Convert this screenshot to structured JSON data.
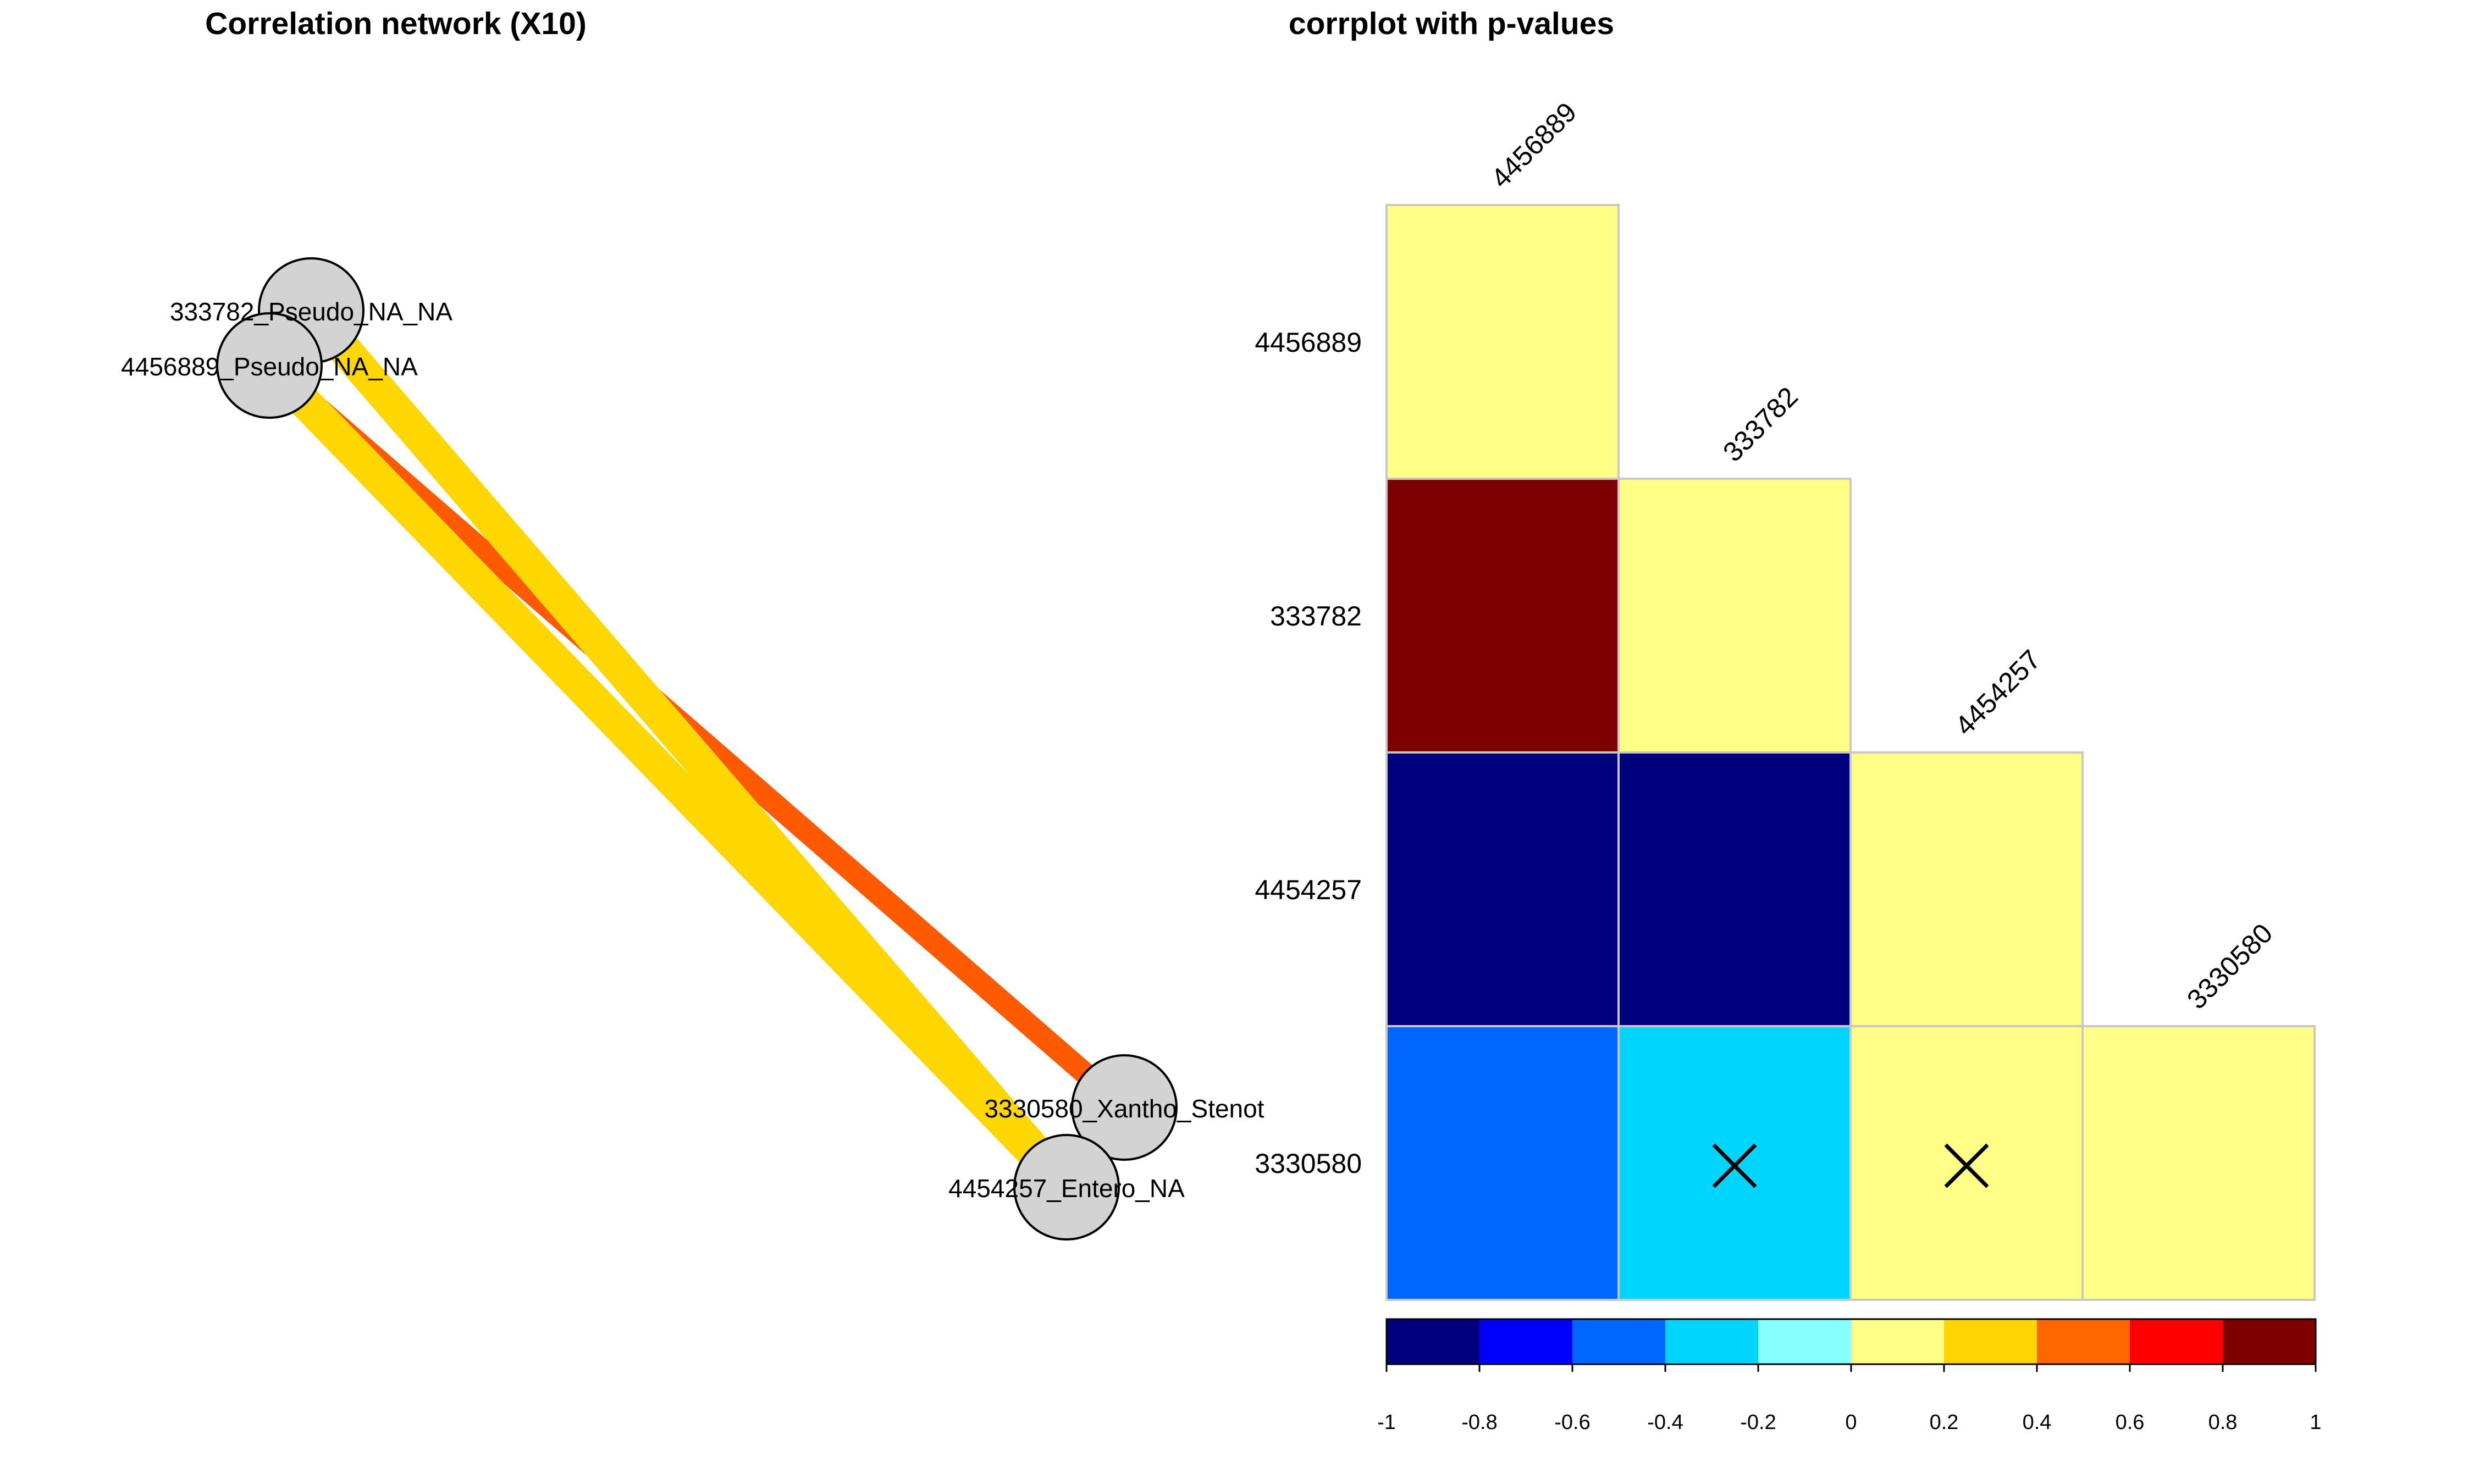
{
  "chart_data": [
    {
      "type": "network",
      "title": "Correlation network (X10)",
      "nodes": [
        {
          "id": "333782",
          "label": "333782_Pseudo_NA_NA"
        },
        {
          "id": "4456889",
          "label": "4456889_Pseudo_NA_NA"
        },
        {
          "id": "3330580",
          "label": "3330580_Xantho_Stenot"
        },
        {
          "id": "4454257",
          "label": "4454257_Entero_NA"
        }
      ],
      "edges": [
        {
          "source": "4456889",
          "target": "3330580",
          "color": "#FF5A00"
        },
        {
          "source": "4456889",
          "target": "4454257",
          "color": "#FFD700"
        },
        {
          "source": "333782",
          "target": "4454257",
          "color": "#FFD700"
        }
      ]
    },
    {
      "type": "heatmap",
      "title": "corrplot with p-values",
      "labels": [
        "4456889",
        "333782",
        "4454257",
        "3330580"
      ],
      "cells": [
        {
          "row": 0,
          "col": 0,
          "value": 0.1
        },
        {
          "row": 1,
          "col": 0,
          "value": 0.92
        },
        {
          "row": 1,
          "col": 1,
          "value": 0.1
        },
        {
          "row": 2,
          "col": 0,
          "value": -0.92
        },
        {
          "row": 2,
          "col": 1,
          "value": -0.92
        },
        {
          "row": 2,
          "col": 2,
          "value": 0.1
        },
        {
          "row": 3,
          "col": 0,
          "value": -0.5
        },
        {
          "row": 3,
          "col": 1,
          "value": -0.3,
          "insignificant": true
        },
        {
          "row": 3,
          "col": 2,
          "value": 0.1,
          "insignificant": true
        },
        {
          "row": 3,
          "col": 3,
          "value": 0.1
        }
      ],
      "colorbar": {
        "ticks": [
          "-1",
          "-0.8",
          "-0.6",
          "-0.4",
          "-0.2",
          "0",
          "0.2",
          "0.4",
          "0.6",
          "0.8",
          "1"
        ],
        "colors": [
          "#00007F",
          "#0000FF",
          "#0066FF",
          "#00D5FF",
          "#88FFFF",
          "#FFFF88",
          "#FFD500",
          "#FF6600",
          "#FF0000",
          "#7F0000"
        ]
      }
    }
  ]
}
